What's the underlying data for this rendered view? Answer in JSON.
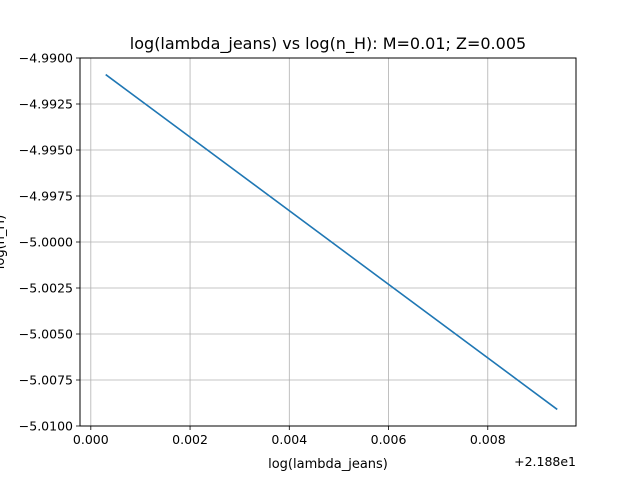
{
  "chart_data": {
    "type": "line",
    "title": "log(lambda_jeans) vs log(n_H): M=0.01; Z=0.005",
    "xlabel": "log(lambda_jeans)",
    "ylabel": "log(n_H)",
    "x_offset_label": "+2.188e1",
    "xlim": [
      21.879782,
      21.889778
    ],
    "ylim": [
      -5.01,
      -4.99
    ],
    "x_ticks": [
      21.88,
      21.882,
      21.884,
      21.886,
      21.888
    ],
    "x_tick_labels": [
      "0.000",
      "0.002",
      "0.004",
      "0.006",
      "0.008"
    ],
    "y_ticks": [
      -5.01,
      -5.0075,
      -5.005,
      -5.0025,
      -5.0,
      -4.9975,
      -4.995,
      -4.9925,
      -4.99
    ],
    "y_tick_labels": [
      "−5.0100",
      "−5.0075",
      "−5.0050",
      "−5.0025",
      "−5.0000",
      "−4.9975",
      "−4.9950",
      "−4.9925",
      "−4.9900"
    ],
    "grid": true,
    "series": [
      {
        "color": "#1f77b4",
        "x": [
          21.8803,
          21.8894
        ],
        "y": [
          -4.9909,
          -5.0091
        ]
      }
    ]
  }
}
